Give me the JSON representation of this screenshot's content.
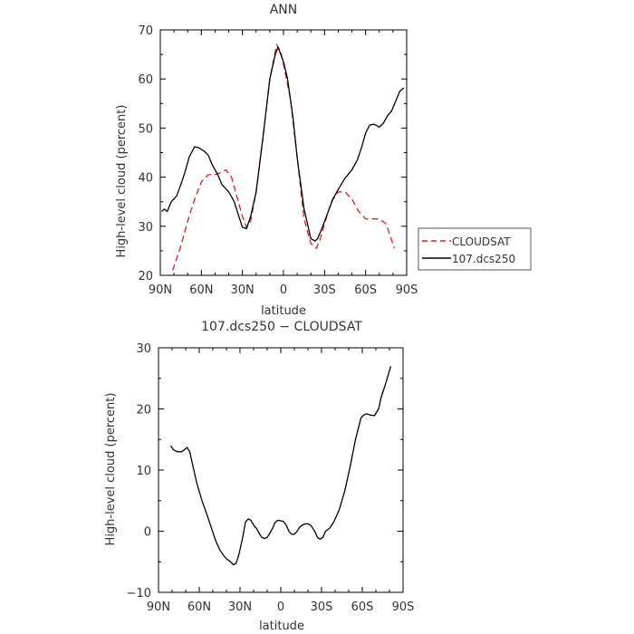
{
  "chart_data": [
    {
      "type": "line",
      "title": "ANN",
      "xlabel": "latitude",
      "ylabel": "High-level cloud (percent)",
      "xlim": [
        90,
        -90
      ],
      "ylim": [
        20,
        70
      ],
      "x_ticks": [
        90,
        60,
        30,
        0,
        -30,
        -60,
        -90
      ],
      "x_tick_labels": [
        "90N",
        "60N",
        "30N",
        "0",
        "30S",
        "60S",
        "90S"
      ],
      "y_ticks": [
        20,
        30,
        40,
        50,
        60,
        70
      ],
      "y_tick_labels": [
        "20",
        "30",
        "40",
        "50",
        "60",
        "70"
      ],
      "legend_position": "right",
      "series": [
        {
          "name": "CLOUDSAT",
          "color": "#e41a1c",
          "dash": "dashed",
          "x": [
            81,
            75,
            70,
            65,
            60,
            55,
            50,
            45,
            42,
            38,
            34,
            30,
            27,
            24,
            20,
            15,
            10,
            5,
            2,
            0,
            -5,
            -10,
            -15,
            -20,
            -24,
            -27,
            -30,
            -35,
            -40,
            -45,
            -50,
            -55,
            -60,
            -65,
            -70,
            -75,
            -81
          ],
          "y": [
            21,
            26,
            31,
            35.5,
            39,
            40.5,
            40.5,
            41,
            41.5,
            40,
            36,
            32,
            29.8,
            31,
            37,
            48,
            60,
            67,
            65.5,
            63,
            56,
            44,
            31.5,
            26.5,
            25.5,
            27.5,
            30.5,
            35,
            37,
            37,
            35.5,
            33,
            31.5,
            31.5,
            31.5,
            30.5,
            25.5
          ]
        },
        {
          "name": "107.dcs250",
          "color": "#000000",
          "dash": "solid",
          "x": [
            89,
            87,
            85,
            82,
            78,
            75,
            72,
            69,
            65,
            62,
            58,
            55,
            52,
            48,
            45,
            40,
            36,
            32,
            30,
            27,
            24,
            20,
            15,
            10,
            6,
            4,
            2,
            0,
            -3,
            -7,
            -10,
            -15,
            -20,
            -23,
            -25,
            -28,
            -32,
            -36,
            -40,
            -45,
            -50,
            -54,
            -57,
            -60,
            -63,
            -66,
            -70,
            -73,
            -76,
            -79,
            -82,
            -85,
            -88
          ],
          "y": [
            33,
            33.5,
            33,
            35,
            36.2,
            38.5,
            41,
            44,
            46.2,
            46,
            45.3,
            44.5,
            42.5,
            40.5,
            38.5,
            37,
            35,
            31.5,
            29.8,
            29.5,
            32,
            37,
            48,
            60,
            65,
            66.5,
            65,
            63.5,
            60,
            52,
            44,
            33.5,
            27.5,
            27,
            27.5,
            29.5,
            32.5,
            35.5,
            37.5,
            39.8,
            41.5,
            43.5,
            46,
            49,
            50.6,
            50.8,
            50.2,
            51,
            52.5,
            53.5,
            55.5,
            57.5,
            58.2
          ]
        }
      ]
    },
    {
      "type": "line",
      "title": "107.dcs250 − CLOUDSAT",
      "xlabel": "latitude",
      "ylabel": "High-level cloud (percent)",
      "xlim": [
        90,
        -90
      ],
      "ylim": [
        -10,
        30
      ],
      "x_ticks": [
        90,
        60,
        30,
        0,
        -30,
        -60,
        -90
      ],
      "x_tick_labels": [
        "90N",
        "60N",
        "30N",
        "0",
        "30S",
        "60S",
        "90S"
      ],
      "y_ticks": [
        -10,
        0,
        10,
        20,
        30
      ],
      "y_tick_labels": [
        "−10",
        "0",
        "10",
        "20",
        "30"
      ],
      "series": [
        {
          "color": "#000000",
          "dash": "solid",
          "x": [
            81,
            79,
            76,
            73,
            71,
            69,
            67,
            64,
            62,
            58,
            54,
            51,
            48,
            45,
            42,
            40,
            37,
            35,
            33,
            31,
            28,
            26,
            24,
            22,
            20,
            18,
            16,
            14,
            12,
            10,
            8,
            6,
            4,
            2,
            0,
            -2,
            -4,
            -6,
            -8,
            -10,
            -12,
            -14,
            -16,
            -18,
            -20,
            -22,
            -25,
            -27,
            -29,
            -31,
            -33,
            -36,
            -39,
            -43,
            -47,
            -51,
            -55,
            -59,
            -61,
            -63,
            -66,
            -69,
            -72,
            -74,
            -77,
            -79,
            -81
          ],
          "y": [
            14,
            13.3,
            13,
            13,
            13.3,
            13.7,
            13,
            10,
            8,
            5,
            2.5,
            0.5,
            -1.5,
            -3,
            -4,
            -4.5,
            -5,
            -5.5,
            -5.3,
            -4,
            -1,
            1.5,
            2,
            1.8,
            1,
            0.5,
            -0.3,
            -1,
            -1.2,
            -1,
            -0.3,
            0.5,
            1.5,
            1.8,
            1.7,
            1.6,
            1,
            0,
            -0.5,
            -0.5,
            0,
            0.7,
            1,
            1.2,
            1.2,
            1,
            0,
            -1,
            -1.3,
            -1,
            0,
            0.5,
            1.5,
            3.5,
            6.5,
            10.5,
            15,
            18.5,
            19,
            19.2,
            19,
            18.9,
            20,
            22,
            24,
            25.5,
            27
          ]
        }
      ]
    }
  ]
}
